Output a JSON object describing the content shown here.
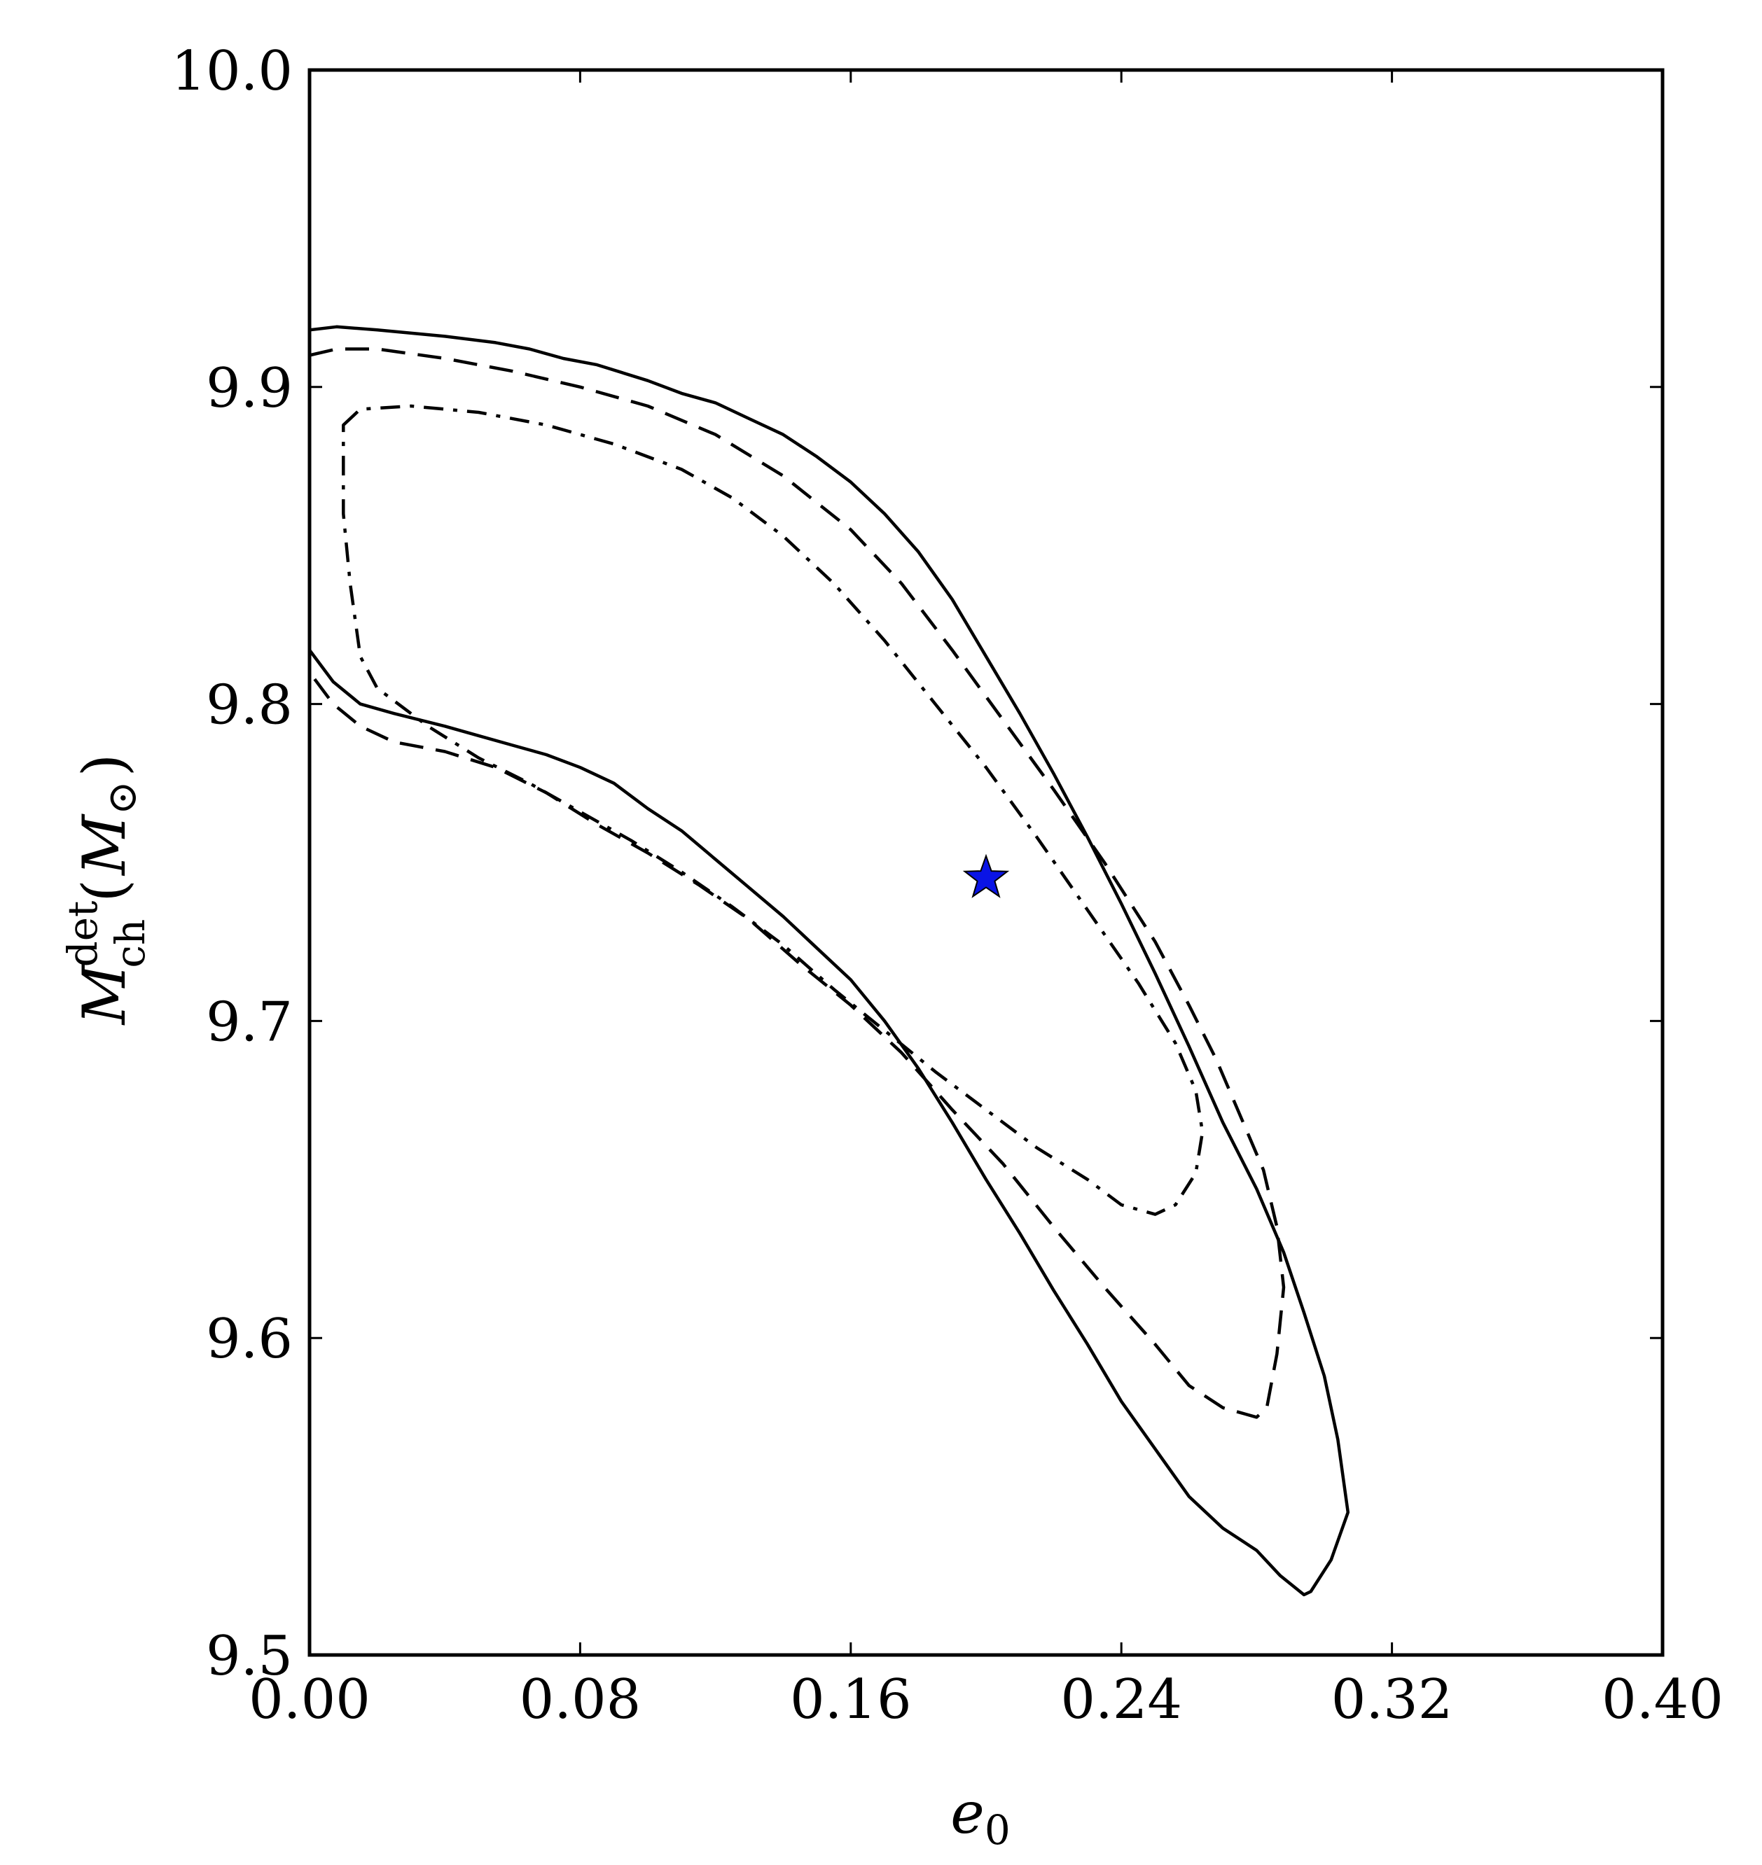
{
  "chart_data": {
    "type": "contour",
    "xlabel": "e_0",
    "ylabel": "M_ch^det (M_⊙)",
    "xlim": [
      0.0,
      0.4
    ],
    "ylim": [
      9.5,
      10.0
    ],
    "x_ticks": [
      0.0,
      0.08,
      0.16,
      0.24,
      0.32,
      0.4
    ],
    "x_tick_labels": [
      "0.00",
      "0.08",
      "0.16",
      "0.24",
      "0.32",
      "0.40"
    ],
    "y_ticks": [
      9.5,
      9.6,
      9.7,
      9.8,
      9.9,
      10.0
    ],
    "y_tick_labels": [
      "9.5",
      "9.6",
      "9.7",
      "9.8",
      "9.9",
      "10.0"
    ],
    "grid": false,
    "contours": [
      {
        "style": "solid",
        "points": [
          [
            0.0,
            9.918
          ],
          [
            0.008,
            9.919
          ],
          [
            0.02,
            9.918
          ],
          [
            0.04,
            9.916
          ],
          [
            0.055,
            9.914
          ],
          [
            0.065,
            9.912
          ],
          [
            0.075,
            9.909
          ],
          [
            0.085,
            9.907
          ],
          [
            0.1,
            9.902
          ],
          [
            0.11,
            9.898
          ],
          [
            0.12,
            9.895
          ],
          [
            0.13,
            9.89
          ],
          [
            0.14,
            9.885
          ],
          [
            0.15,
            9.878
          ],
          [
            0.16,
            9.87
          ],
          [
            0.17,
            9.86
          ],
          [
            0.18,
            9.848
          ],
          [
            0.19,
            9.833
          ],
          [
            0.2,
            9.815
          ],
          [
            0.21,
            9.797
          ],
          [
            0.22,
            9.778
          ],
          [
            0.23,
            9.758
          ],
          [
            0.24,
            9.737
          ],
          [
            0.25,
            9.715
          ],
          [
            0.26,
            9.692
          ],
          [
            0.27,
            9.668
          ],
          [
            0.28,
            9.647
          ],
          [
            0.288,
            9.627
          ],
          [
            0.294,
            9.608
          ],
          [
            0.3,
            9.588
          ],
          [
            0.304,
            9.568
          ],
          [
            0.307,
            9.545
          ],
          [
            0.302,
            9.53
          ],
          [
            0.296,
            9.52
          ],
          [
            0.294,
            9.519
          ],
          [
            0.287,
            9.525
          ],
          [
            0.28,
            9.533
          ],
          [
            0.27,
            9.54
          ],
          [
            0.26,
            9.55
          ],
          [
            0.25,
            9.565
          ],
          [
            0.24,
            9.58
          ],
          [
            0.23,
            9.598
          ],
          [
            0.22,
            9.615
          ],
          [
            0.21,
            9.633
          ],
          [
            0.2,
            9.65
          ],
          [
            0.19,
            9.668
          ],
          [
            0.18,
            9.685
          ],
          [
            0.17,
            9.7
          ],
          [
            0.16,
            9.713
          ],
          [
            0.15,
            9.723
          ],
          [
            0.14,
            9.733
          ],
          [
            0.13,
            9.742
          ],
          [
            0.12,
            9.751
          ],
          [
            0.11,
            9.76
          ],
          [
            0.1,
            9.767
          ],
          [
            0.09,
            9.775
          ],
          [
            0.08,
            9.78
          ],
          [
            0.07,
            9.784
          ],
          [
            0.06,
            9.787
          ],
          [
            0.05,
            9.79
          ],
          [
            0.04,
            9.793
          ],
          [
            0.025,
            9.797
          ],
          [
            0.015,
            9.8
          ],
          [
            0.007,
            9.807
          ],
          [
            0.0,
            9.817
          ]
        ]
      },
      {
        "style": "dashed",
        "points": [
          [
            0.0,
            9.91
          ],
          [
            0.008,
            9.912
          ],
          [
            0.02,
            9.912
          ],
          [
            0.04,
            9.909
          ],
          [
            0.06,
            9.905
          ],
          [
            0.08,
            9.9
          ],
          [
            0.1,
            9.894
          ],
          [
            0.12,
            9.885
          ],
          [
            0.14,
            9.872
          ],
          [
            0.16,
            9.855
          ],
          [
            0.175,
            9.838
          ],
          [
            0.19,
            9.817
          ],
          [
            0.205,
            9.795
          ],
          [
            0.22,
            9.773
          ],
          [
            0.235,
            9.75
          ],
          [
            0.25,
            9.725
          ],
          [
            0.26,
            9.705
          ],
          [
            0.268,
            9.688
          ],
          [
            0.276,
            9.668
          ],
          [
            0.282,
            9.653
          ],
          [
            0.286,
            9.635
          ],
          [
            0.288,
            9.616
          ],
          [
            0.286,
            9.595
          ],
          [
            0.283,
            9.578
          ],
          [
            0.28,
            9.575
          ],
          [
            0.27,
            9.578
          ],
          [
            0.26,
            9.585
          ],
          [
            0.25,
            9.598
          ],
          [
            0.235,
            9.616
          ],
          [
            0.22,
            9.635
          ],
          [
            0.205,
            9.655
          ],
          [
            0.19,
            9.672
          ],
          [
            0.175,
            9.69
          ],
          [
            0.16,
            9.705
          ],
          [
            0.145,
            9.718
          ],
          [
            0.13,
            9.732
          ],
          [
            0.115,
            9.743
          ],
          [
            0.1,
            9.753
          ],
          [
            0.085,
            9.762
          ],
          [
            0.07,
            9.772
          ],
          [
            0.055,
            9.78
          ],
          [
            0.04,
            9.785
          ],
          [
            0.025,
            9.788
          ],
          [
            0.015,
            9.793
          ],
          [
            0.007,
            9.8
          ],
          [
            0.0,
            9.81
          ]
        ]
      },
      {
        "style": "dashdot",
        "points": [
          [
            0.01,
            9.888
          ],
          [
            0.015,
            9.893
          ],
          [
            0.03,
            9.894
          ],
          [
            0.05,
            9.892
          ],
          [
            0.07,
            9.888
          ],
          [
            0.09,
            9.882
          ],
          [
            0.11,
            9.874
          ],
          [
            0.125,
            9.865
          ],
          [
            0.14,
            9.853
          ],
          [
            0.155,
            9.838
          ],
          [
            0.17,
            9.82
          ],
          [
            0.185,
            9.8
          ],
          [
            0.2,
            9.78
          ],
          [
            0.215,
            9.758
          ],
          [
            0.23,
            9.735
          ],
          [
            0.245,
            9.712
          ],
          [
            0.256,
            9.693
          ],
          [
            0.262,
            9.678
          ],
          [
            0.264,
            9.665
          ],
          [
            0.262,
            9.652
          ],
          [
            0.256,
            9.642
          ],
          [
            0.25,
            9.639
          ],
          [
            0.24,
            9.642
          ],
          [
            0.23,
            9.65
          ],
          [
            0.215,
            9.66
          ],
          [
            0.2,
            9.672
          ],
          [
            0.185,
            9.684
          ],
          [
            0.17,
            9.697
          ],
          [
            0.155,
            9.71
          ],
          [
            0.14,
            9.724
          ],
          [
            0.125,
            9.736
          ],
          [
            0.11,
            9.747
          ],
          [
            0.095,
            9.757
          ],
          [
            0.08,
            9.766
          ],
          [
            0.065,
            9.775
          ],
          [
            0.05,
            9.783
          ],
          [
            0.035,
            9.793
          ],
          [
            0.02,
            9.805
          ],
          [
            0.015,
            9.815
          ],
          [
            0.012,
            9.838
          ],
          [
            0.01,
            9.86
          ],
          [
            0.01,
            9.888
          ]
        ]
      }
    ],
    "marker": {
      "shape": "star",
      "x": 0.2,
      "y": 9.745,
      "color": "#0a14e6"
    }
  }
}
